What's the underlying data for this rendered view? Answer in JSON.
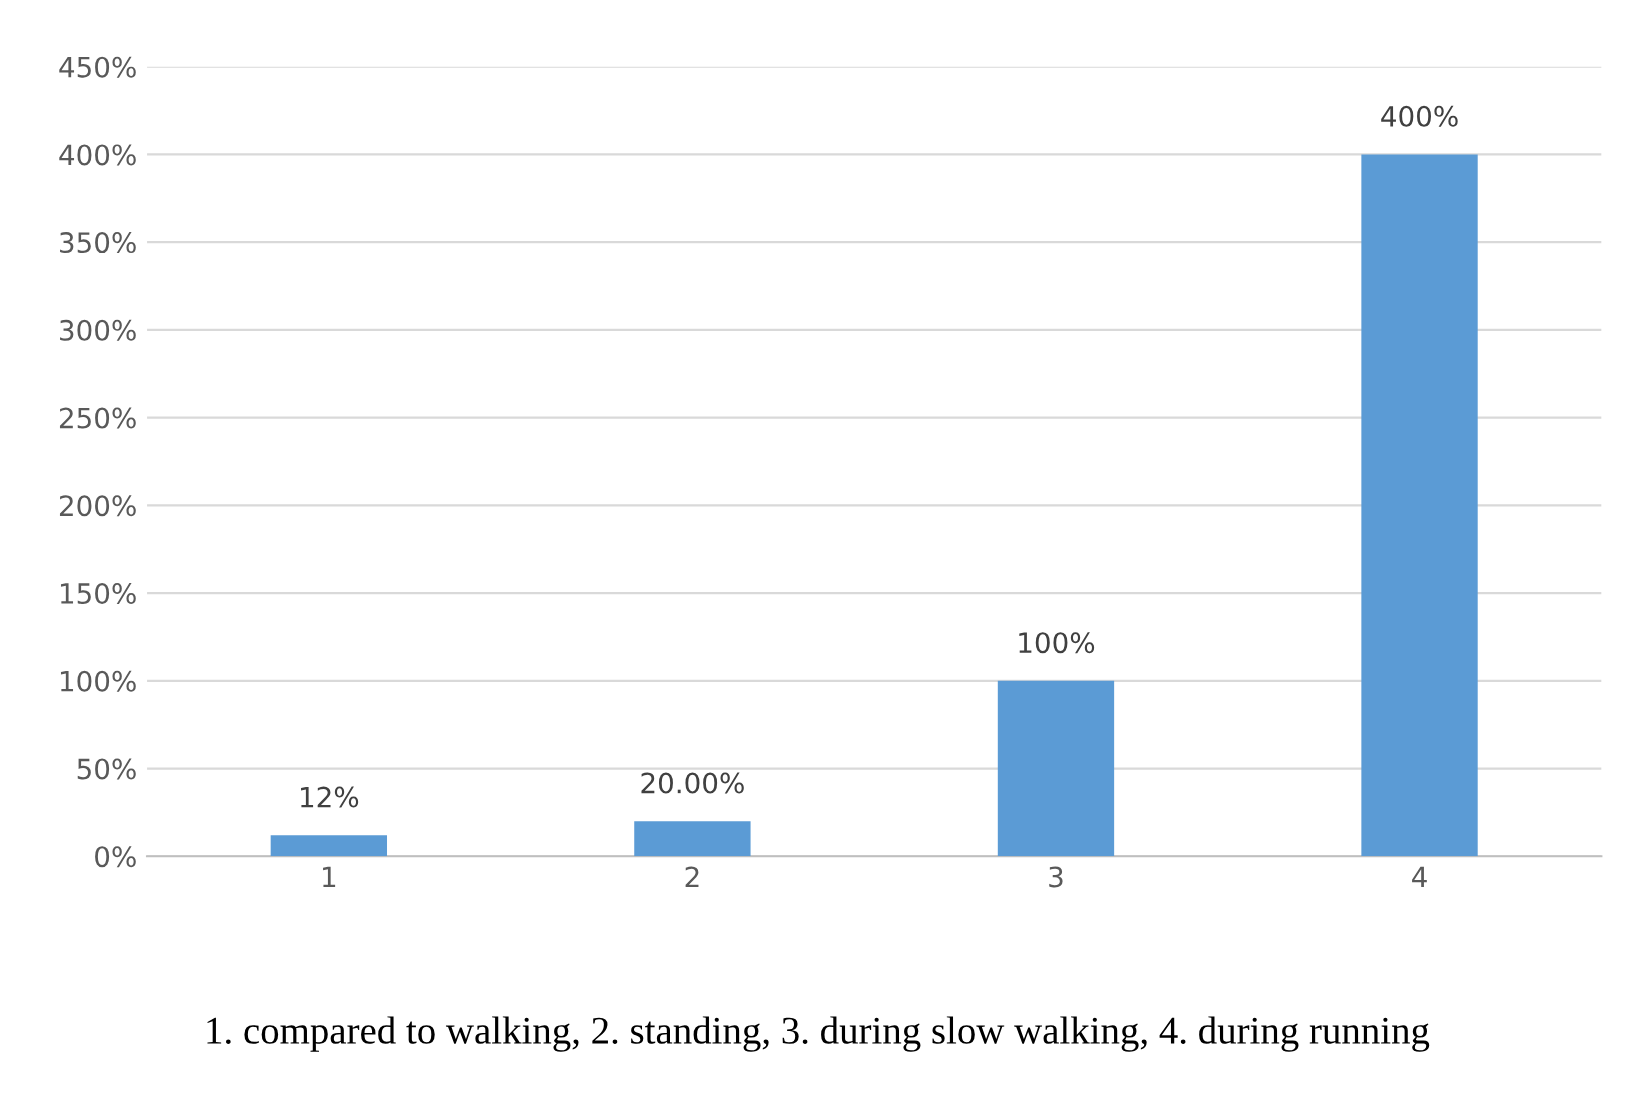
{
  "chart_data": {
    "type": "bar",
    "categories": [
      "1",
      "2",
      "3",
      "4"
    ],
    "values": [
      12,
      20,
      100,
      400
    ],
    "value_labels": [
      "12%",
      "20.00%",
      "100%",
      "400%"
    ],
    "color": "#5b9bd5",
    "ylim": [
      0,
      450
    ],
    "yticks": [
      {
        "value": 0,
        "label": "0%"
      },
      {
        "value": 50,
        "label": "50%"
      },
      {
        "value": 100,
        "label": "100%"
      },
      {
        "value": 150,
        "label": "150%"
      },
      {
        "value": 200,
        "label": "200%"
      },
      {
        "value": 250,
        "label": "250%"
      },
      {
        "value": 300,
        "label": "300%"
      },
      {
        "value": 350,
        "label": "350%"
      },
      {
        "value": 400,
        "label": "400%"
      },
      {
        "value": 450,
        "label": "450%"
      }
    ],
    "grid": "y",
    "annotations": [
      "1. compared to walking, 2. standing, 3. during slow walking, 4. during running"
    ]
  }
}
